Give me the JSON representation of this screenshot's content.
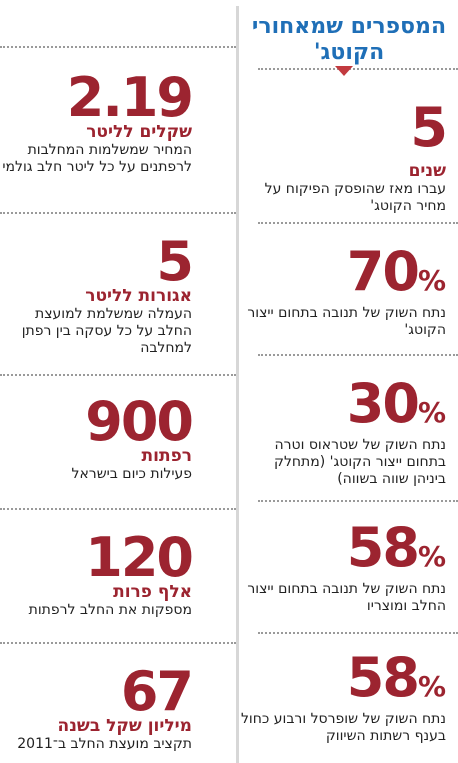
{
  "header": {
    "title": "המספרים שמאחורי הקוטג'"
  },
  "right_stats": [
    {
      "num": "5",
      "pct": "",
      "unit": "שנים",
      "desc": "עברו מאז שהופסק הפיקוח על מחיר הקוטג'"
    },
    {
      "num": "70",
      "pct": "%",
      "unit": "",
      "desc": "נתח השוק של תנובה בתחום ייצור הקוטג'"
    },
    {
      "num": "30",
      "pct": "%",
      "unit": "",
      "desc": "נתח השוק של שטראוס וטרה בתחום ייצור הקוטג' (מתחלק ביניהן שווה בשווה)"
    },
    {
      "num": "58",
      "pct": "%",
      "unit": "",
      "desc": "נתח השוק של תנובה בתחום ייצור החלב ומוצריו"
    },
    {
      "num": "58",
      "pct": "%",
      "unit": "",
      "desc": "נתח השוק של שופרסל ורבוע כחול בענף רשתות השיווק"
    }
  ],
  "left_stats": [
    {
      "num": "2.19",
      "unit": "שקלים לליטר",
      "desc": "המחיר שמשלמות המחלבות לרפתנים על כל ליטר חלב גולמי"
    },
    {
      "num": "5",
      "unit": "אגורות לליטר",
      "desc": "העמלה שמשלמת למועצת החלב על כל עסקה בין רפתן למחלבה"
    },
    {
      "num": "900",
      "unit": "רפתות",
      "desc": "פעילות כיום בישראל"
    },
    {
      "num": "120",
      "unit": "אלף פרות",
      "desc": "מספקות את החלב לרפתות"
    },
    {
      "num": "67",
      "unit": "מיליון שקל בשנה",
      "desc": "תקציב מועצת החלב ב־2011"
    }
  ],
  "colors": {
    "accent_red": "#9c2430",
    "title_blue": "#1f6fb7",
    "divider_gray": "#d7d7d7"
  }
}
